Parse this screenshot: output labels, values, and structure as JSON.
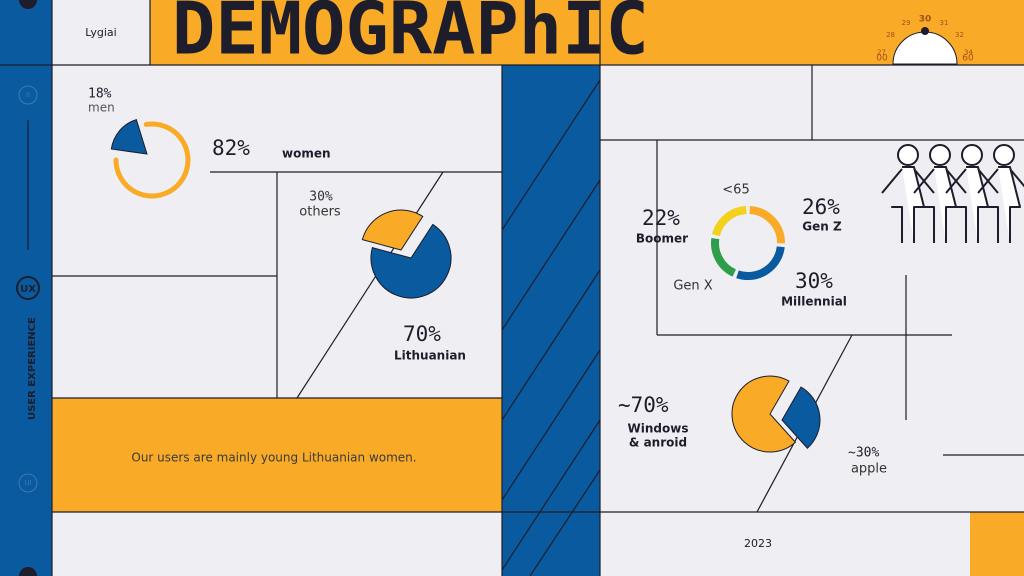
{
  "header": {
    "label": "Lygiai",
    "title": "DEMOGRAPhIC",
    "gauge": {
      "labels": [
        "00",
        "27",
        "28",
        "29",
        "30",
        "31",
        "32",
        "34",
        "60"
      ]
    }
  },
  "sidebar": {
    "title": "USER EXPERIENCE",
    "badges": [
      "II",
      "UX",
      "UI"
    ]
  },
  "gender": {
    "men": {
      "value": 18,
      "label": "18%",
      "name": "men"
    },
    "women": {
      "value": 82,
      "label": "82%",
      "name": "women"
    }
  },
  "nationality": {
    "others": {
      "value": 30,
      "label": "30%",
      "name": "others"
    },
    "lithuanian": {
      "value": 70,
      "label": "70%",
      "name": "Lithuanian"
    }
  },
  "summary": "Our users are mainly young Lithuanian women.",
  "generations": {
    "note": "<65",
    "groups": [
      {
        "name": "Gen Z",
        "value": 26,
        "label": "26%"
      },
      {
        "name": "Millennial",
        "value": 30,
        "label": "30%"
      },
      {
        "name": "Gen X"
      },
      {
        "name": "Boomer",
        "value": 22,
        "label": "22%"
      }
    ]
  },
  "os": {
    "windows": {
      "value": 70,
      "label": "~70%",
      "name": [
        "Windows",
        "& anroid"
      ]
    },
    "apple": {
      "value": 30,
      "label": "~30%",
      "name": "apple"
    }
  },
  "footer": {
    "year": "2023"
  }
}
